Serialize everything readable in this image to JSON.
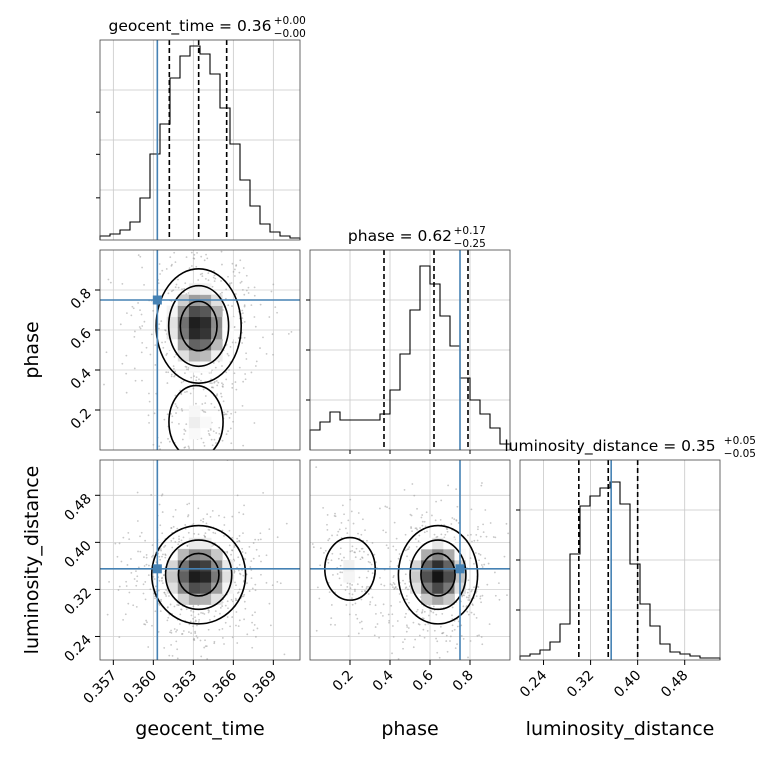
{
  "chart_data": {
    "type": "corner",
    "parameters": [
      {
        "name": "geocent_time",
        "title": "geocent_time = 0.36",
        "title_sup": "+0.00",
        "title_sub": "−0.00",
        "range": [
          0.356,
          0.371
        ],
        "ticks": [
          0.357,
          0.36,
          0.363,
          0.366,
          0.369
        ],
        "tick_labels": [
          "0.357",
          "0.360",
          "0.363",
          "0.366",
          "0.369"
        ],
        "injection": 0.3603,
        "quantiles": [
          0.3612,
          0.3634,
          0.3655
        ],
        "hist": [
          0.02,
          0.03,
          0.05,
          0.09,
          0.21,
          0.43,
          0.58,
          0.81,
          0.92,
          0.97,
          0.93,
          0.83,
          0.66,
          0.48,
          0.3,
          0.17,
          0.08,
          0.04,
          0.02,
          0.01
        ]
      },
      {
        "name": "phase",
        "title": "phase = 0.62",
        "title_sup": "+0.17",
        "title_sub": "−0.25",
        "range": [
          0.0,
          1.0
        ],
        "ticks": [
          0.2,
          0.4,
          0.6,
          0.8
        ],
        "tick_labels": [
          "0.2",
          "0.4",
          "0.6",
          "0.8"
        ],
        "injection": 0.75,
        "quantiles": [
          0.37,
          0.62,
          0.79
        ],
        "hist": [
          0.1,
          0.14,
          0.19,
          0.15,
          0.15,
          0.15,
          0.15,
          0.18,
          0.3,
          0.48,
          0.7,
          0.92,
          0.83,
          0.67,
          0.52,
          0.36,
          0.25,
          0.18,
          0.11,
          0.03
        ]
      },
      {
        "name": "luminosity_distance",
        "title": "luminosity_distance = 0.35",
        "title_sup": "+0.05",
        "title_sub": "−0.05",
        "range": [
          0.2,
          0.54
        ],
        "ticks": [
          0.24,
          0.32,
          0.4,
          0.48
        ],
        "tick_labels": [
          "0.24",
          "0.32",
          "0.40",
          "0.48"
        ],
        "injection": 0.355,
        "quantiles": [
          0.3,
          0.35,
          0.4
        ],
        "hist": [
          0.02,
          0.03,
          0.05,
          0.09,
          0.18,
          0.53,
          0.77,
          0.82,
          0.86,
          0.89,
          0.78,
          0.48,
          0.28,
          0.17,
          0.08,
          0.04,
          0.03,
          0.02,
          0.01,
          0.01
        ]
      }
    ],
    "pairs": [
      {
        "x": "geocent_time",
        "y": "phase",
        "center": [
          0.3634,
          0.62
        ],
        "spread": [
          0.00145,
          0.13
        ],
        "tail": [
          0.3632,
          0.14
        ]
      },
      {
        "x": "geocent_time",
        "y": "luminosity_distance",
        "center": [
          0.3634,
          0.345
        ],
        "spread": [
          0.0016,
          0.038
        ]
      },
      {
        "x": "phase",
        "y": "luminosity_distance",
        "center": [
          0.64,
          0.345
        ],
        "spread": [
          0.09,
          0.038
        ],
        "tail": [
          0.2,
          0.355
        ]
      }
    ],
    "injection_color": "#4682b4",
    "hist_color": "#000000",
    "grid": true
  }
}
